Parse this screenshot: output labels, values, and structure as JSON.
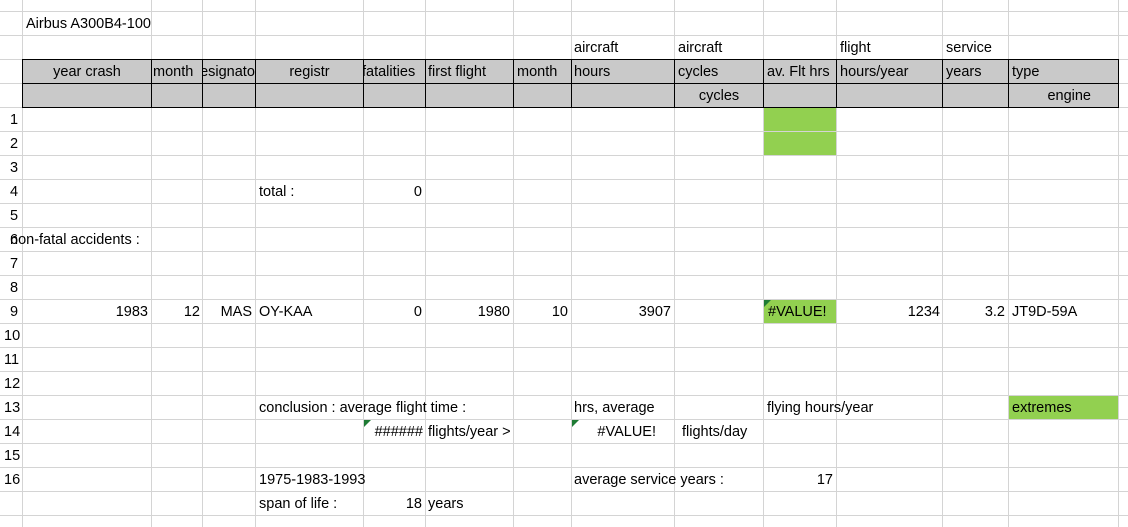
{
  "sheet": {
    "title": "Airbus A300B4-100",
    "header": {
      "year_crash": "year crash",
      "month": "month",
      "designator": "designator",
      "registr": "registr",
      "fatalities": "fatalities",
      "first_flight": "first flight",
      "month2": "month",
      "aircraft_hours_top": "aircraft",
      "aircraft_hours": "hours",
      "aircraft_cycles_top": "aircraft",
      "aircraft_cycles": "cycles",
      "av_flt_hrs": "av. Flt hrs",
      "flight_hours_top": "flight",
      "flight_hours_year": "hours/year",
      "service_top": "service",
      "service_years": "years",
      "type": "type",
      "cycles_sub": "cycles",
      "engine_sub": "engine"
    },
    "row_numbers": [
      "1",
      "2",
      "3",
      "4",
      "5",
      "6",
      "7",
      "8",
      "9",
      "10",
      "11",
      "12",
      "13",
      "14",
      "15",
      "16"
    ],
    "total_label": "total :",
    "total_value": "0",
    "non_fatal_label": "non-fatal accidents :",
    "record": {
      "year": "1983",
      "month": "12",
      "designator": "MAS",
      "registr": "OY-KAA",
      "fatalities": "0",
      "first_flight": "1980",
      "ff_month": "10",
      "hours": "3907",
      "av_flt": "#VALUE!",
      "hours_year": "1234",
      "service_years": "3.2",
      "type": "JT9D-59A"
    },
    "conclusion": {
      "label": "conclusion : average flight time :",
      "hrs_average": "hrs, average",
      "flying_hours_year": "flying hours/year",
      "extremes": "extremes",
      "hash": "######",
      "flights_year": "flights/year >",
      "value_error": "#VALUE!",
      "flights_day": "flights/day"
    },
    "span": {
      "range": "1975-1983-1993",
      "avg_service_label": "average service years :",
      "avg_service_value": "17",
      "span_label": "span of life :",
      "span_value": "18",
      "span_unit": "years"
    }
  }
}
